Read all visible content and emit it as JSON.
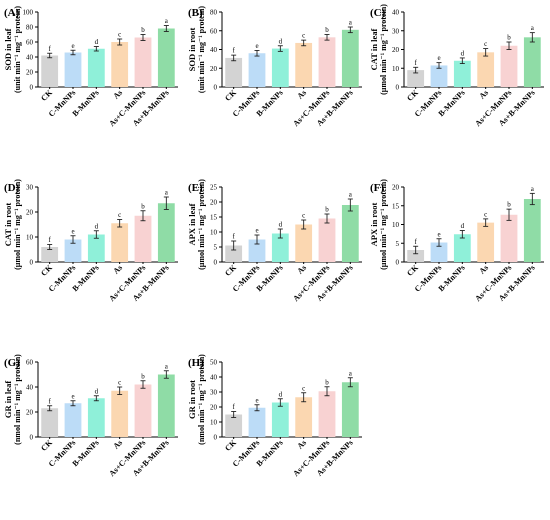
{
  "colors": {
    "CK": "#d3d3d3",
    "C-MnNPs": "#bcdcf7",
    "B-MnNPs": "#8ff0d9",
    "As": "#fbd7b1",
    "As+C-MnNPs": "#f8d2d2",
    "As+B-MnNPs": "#8fdca6",
    "axis": "#000000"
  },
  "chart_data": [
    {
      "type": "bar",
      "panel_label": "(A)",
      "ylabel_main": "SOD in leaf",
      "ylabel_unit": "(unit min⁻¹ mg⁻¹ protein)",
      "categories": [
        "CK",
        "C-MnNPs",
        "B-MnNPs",
        "As",
        "As+C-MnNPs",
        "As+B-MnNPs"
      ],
      "values": [
        42,
        46,
        51,
        60,
        66,
        78
      ],
      "errors": [
        3,
        3,
        3,
        4,
        4,
        4
      ],
      "letters": [
        "f",
        "e",
        "d",
        "c",
        "b",
        "a"
      ],
      "ylim": [
        0,
        100
      ],
      "yticks": [
        "0",
        "20",
        "40",
        "60",
        "80",
        "100"
      ]
    },
    {
      "type": "bar",
      "panel_label": "(B)",
      "ylabel_main": "SOD in root",
      "ylabel_unit": "(unit min⁻¹ mg⁻¹ protein)",
      "categories": [
        "CK",
        "C-MnNPs",
        "B-MnNPs",
        "As",
        "As+C-MnNPs",
        "As+B-MnNPs"
      ],
      "values": [
        31,
        36,
        41,
        47,
        53,
        61
      ],
      "errors": [
        3,
        3,
        3,
        3,
        3,
        3
      ],
      "letters": [
        "f",
        "e",
        "d",
        "c",
        "b",
        "a"
      ],
      "ylim": [
        0,
        80
      ],
      "yticks": [
        "0",
        "20",
        "40",
        "60",
        "80"
      ]
    },
    {
      "type": "bar",
      "panel_label": "(C)",
      "ylabel_main": "CAT in leaf",
      "ylabel_unit": "(μmol min⁻¹ mg⁻¹ protein)",
      "categories": [
        "CK",
        "C-MnNPs",
        "B-MnNPs",
        "As",
        "As+C-MnNPs",
        "As+B-MnNPs"
      ],
      "values": [
        9,
        11.5,
        14,
        18.5,
        22,
        26.5
      ],
      "errors": [
        1.5,
        1.5,
        1.5,
        2,
        2,
        2.5
      ],
      "letters": [
        "f",
        "e",
        "d",
        "c",
        "b",
        "a"
      ],
      "ylim": [
        0,
        40
      ],
      "yticks": [
        "0",
        "10",
        "20",
        "30",
        "40"
      ]
    },
    {
      "type": "bar",
      "panel_label": "(D)",
      "ylabel_main": "CAT in root",
      "ylabel_unit": "(μmol min⁻¹ mg⁻¹ protein)",
      "categories": [
        "CK",
        "C-MnNPs",
        "B-MnNPs",
        "As",
        "As+C-MnNPs",
        "As+B-MnNPs"
      ],
      "values": [
        6,
        9,
        11,
        15.5,
        18.5,
        23.5
      ],
      "errors": [
        1,
        1.5,
        1.5,
        1.5,
        2,
        2.5
      ],
      "letters": [
        "f",
        "e",
        "d",
        "c",
        "b",
        "a"
      ],
      "ylim": [
        0,
        30
      ],
      "yticks": [
        "0",
        "10",
        "20",
        "30"
      ]
    },
    {
      "type": "bar",
      "panel_label": "(E)",
      "ylabel_main": "APX in leaf",
      "ylabel_unit": "(μmol min⁻¹ mg⁻¹ protein)",
      "categories": [
        "CK",
        "C-MnNPs",
        "B-MnNPs",
        "As",
        "As+C-MnNPs",
        "As+B-MnNPs"
      ],
      "values": [
        5.5,
        7.5,
        9.5,
        12.5,
        14.5,
        19
      ],
      "errors": [
        1.5,
        1.5,
        1.5,
        1.5,
        1.5,
        2
      ],
      "letters": [
        "f",
        "e",
        "d",
        "c",
        "b",
        "a"
      ],
      "ylim": [
        0,
        25
      ],
      "yticks": [
        "0",
        "5",
        "10",
        "15",
        "20",
        "25"
      ]
    },
    {
      "type": "bar",
      "panel_label": "(F)",
      "ylabel_main": "APX in root",
      "ylabel_unit": "(μmol min⁻¹ mg⁻¹ protein)",
      "categories": [
        "CK",
        "C-MnNPs",
        "B-MnNPs",
        "As",
        "As+C-MnNPs",
        "As+B-MnNPs"
      ],
      "values": [
        3.2,
        5.2,
        7.4,
        10.5,
        12.6,
        16.8
      ],
      "errors": [
        1,
        1,
        1,
        1,
        1.5,
        1.5
      ],
      "letters": [
        "f",
        "e",
        "d",
        "c",
        "b",
        "a"
      ],
      "ylim": [
        0,
        20
      ],
      "yticks": [
        "0",
        "5",
        "10",
        "15",
        "20"
      ]
    },
    {
      "type": "bar",
      "panel_label": "(G)",
      "ylabel_main": "GR in leaf",
      "ylabel_unit": "(nmol min⁻¹ mg⁻¹ protein)",
      "categories": [
        "CK",
        "C-MnNPs",
        "B-MnNPs",
        "As",
        "As+C-MnNPs",
        "As+B-MnNPs"
      ],
      "values": [
        23,
        27,
        31,
        37,
        42,
        50
      ],
      "errors": [
        2,
        2,
        2,
        3,
        3,
        3
      ],
      "letters": [
        "f",
        "e",
        "d",
        "c",
        "b",
        "a"
      ],
      "ylim": [
        0,
        60
      ],
      "yticks": [
        "0",
        "20",
        "40",
        "60"
      ]
    },
    {
      "type": "bar",
      "panel_label": "(H)",
      "ylabel_main": "GR in root",
      "ylabel_unit": "(nmol min⁻¹ mg⁻¹ protein)",
      "categories": [
        "CK",
        "C-MnNPs",
        "B-MnNPs",
        "As",
        "As+C-MnNPs",
        "As+B-MnNPs"
      ],
      "values": [
        15,
        19.5,
        23,
        26.5,
        30.5,
        36.5
      ],
      "errors": [
        2,
        2,
        2.5,
        3,
        3,
        3
      ],
      "letters": [
        "f",
        "e",
        "d",
        "c",
        "b",
        "a"
      ],
      "ylim": [
        0,
        50
      ],
      "yticks": [
        "0",
        "10",
        "20",
        "30",
        "40",
        "50"
      ]
    }
  ]
}
